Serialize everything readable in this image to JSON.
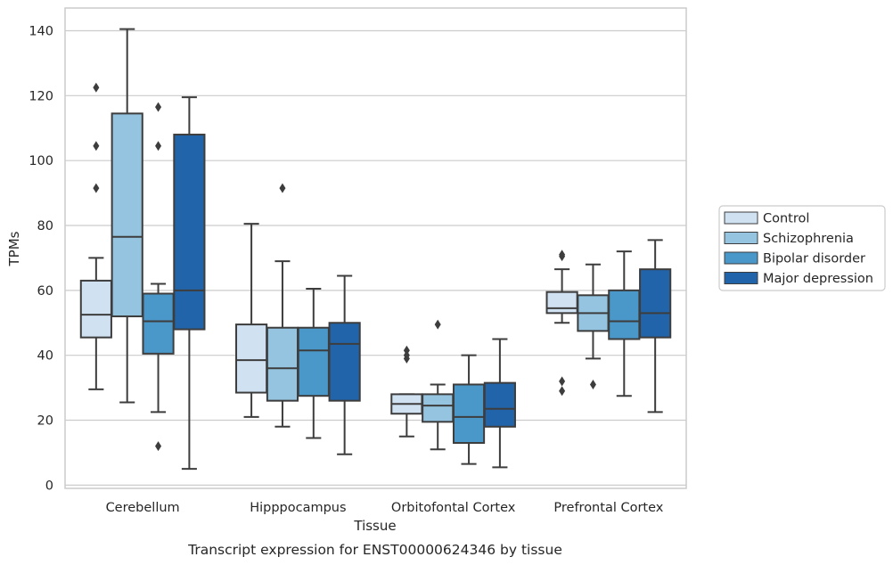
{
  "chart_data": {
    "type": "box",
    "caption": "Transcript expression for ENST00000624346 by tissue",
    "xlabel": "Tissue",
    "ylabel": "TPMs",
    "ylim": [
      -1,
      147
    ],
    "yticks": [
      0,
      20,
      40,
      60,
      80,
      100,
      120,
      140
    ],
    "grid": "horizontal",
    "legend_position": "right",
    "categories": [
      "Cerebellum",
      "Hipppocampus",
      "Orbitofontal Cortex",
      "Prefrontal Cortex"
    ],
    "series": [
      {
        "name": "Control",
        "color": "#d0e1f2",
        "boxes": [
          {
            "whisker_low": 29.5,
            "q1": 45.5,
            "median": 52.5,
            "q3": 63,
            "whisker_high": 70,
            "outliers": [
              122.5,
              104.5,
              91.5
            ]
          },
          {
            "whisker_low": 21,
            "q1": 28.5,
            "median": 38.5,
            "q3": 49.5,
            "whisker_high": 80.5,
            "outliers": []
          },
          {
            "whisker_low": 15,
            "q1": 22,
            "median": 25,
            "q3": 28,
            "whisker_high": 28,
            "outliers": [
              41.5,
              40,
              39
            ]
          },
          {
            "whisker_low": 50,
            "q1": 53,
            "median": 54.5,
            "q3": 59.5,
            "whisker_high": 66.5,
            "outliers": [
              71,
              70.5,
              32,
              29
            ]
          }
        ]
      },
      {
        "name": "Schizophrenia",
        "color": "#94c4df",
        "boxes": [
          {
            "whisker_low": 25.5,
            "q1": 52,
            "median": 76.5,
            "q3": 114.5,
            "whisker_high": 140.5,
            "outliers": []
          },
          {
            "whisker_low": 18,
            "q1": 26,
            "median": 36,
            "q3": 48.5,
            "whisker_high": 69,
            "outliers": [
              91.5
            ]
          },
          {
            "whisker_low": 11,
            "q1": 19.5,
            "median": 24.5,
            "q3": 28,
            "whisker_high": 31,
            "outliers": [
              49.5
            ]
          },
          {
            "whisker_low": 39,
            "q1": 47.5,
            "median": 53,
            "q3": 58.5,
            "whisker_high": 68,
            "outliers": [
              31
            ]
          }
        ]
      },
      {
        "name": "Bipolar disorder",
        "color": "#4a98c9",
        "boxes": [
          {
            "whisker_low": 22.5,
            "q1": 40.5,
            "median": 50.5,
            "q3": 59,
            "whisker_high": 62,
            "outliers": [
              116.5,
              104.5,
              12
            ]
          },
          {
            "whisker_low": 14.5,
            "q1": 27.5,
            "median": 41.5,
            "q3": 48.5,
            "whisker_high": 60.5,
            "outliers": []
          },
          {
            "whisker_low": 6.5,
            "q1": 13,
            "median": 21,
            "q3": 31,
            "whisker_high": 40,
            "outliers": []
          },
          {
            "whisker_low": 27.5,
            "q1": 45,
            "median": 50.5,
            "q3": 60,
            "whisker_high": 72,
            "outliers": []
          }
        ]
      },
      {
        "name": "Major depression",
        "color": "#2264aa",
        "boxes": [
          {
            "whisker_low": 5,
            "q1": 48,
            "median": 60,
            "q3": 108,
            "whisker_high": 119.5,
            "outliers": []
          },
          {
            "whisker_low": 9.5,
            "q1": 26,
            "median": 43.5,
            "q3": 50,
            "whisker_high": 64.5,
            "outliers": []
          },
          {
            "whisker_low": 5.5,
            "q1": 18,
            "median": 23.5,
            "q3": 31.5,
            "whisker_high": 45,
            "outliers": []
          },
          {
            "whisker_low": 22.5,
            "q1": 45.5,
            "median": 53,
            "q3": 66.5,
            "whisker_high": 75.5,
            "outliers": []
          }
        ]
      }
    ]
  }
}
